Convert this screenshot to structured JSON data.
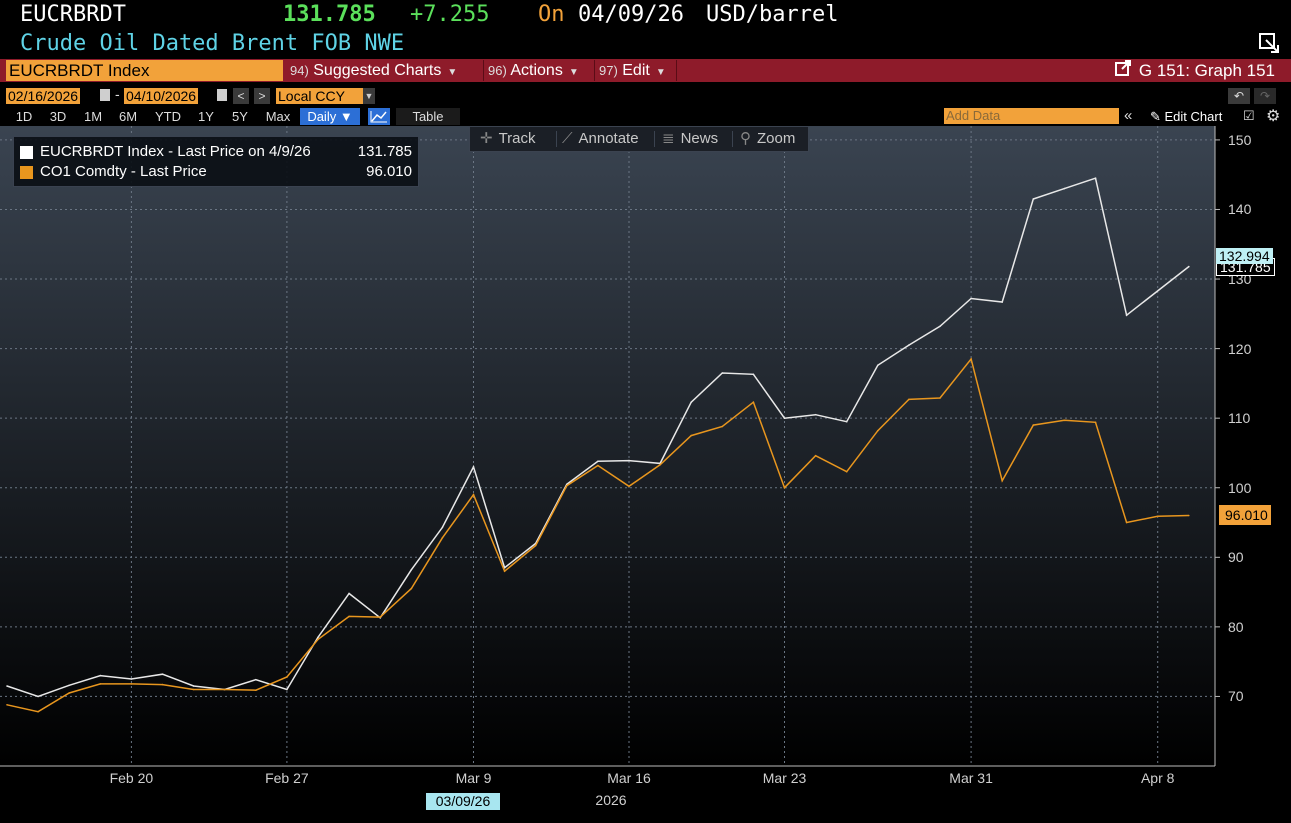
{
  "header": {
    "ticker": "EUCRBRDT",
    "last_price": "131.785",
    "change": "+7.255",
    "on_label": "On",
    "date": "04/09/26",
    "unit": "USD/barrel",
    "description": "Crude Oil Dated Brent FOB NWE",
    "colors": {
      "price": "#5be05b",
      "on": "#f2a23a",
      "desc": "#5fd3e6"
    }
  },
  "menubar": {
    "security": "EUCRBRDT Index",
    "suggested": {
      "num": "94)",
      "label": "Suggested Charts"
    },
    "actions": {
      "num": "96)",
      "label": "Actions"
    },
    "edit": {
      "num": "97)",
      "label": "Edit"
    },
    "graph_id": "G 151: Graph 151"
  },
  "controls": {
    "start_date": "02/16/2026",
    "end_date": "04/10/2026",
    "currency": "Local CCY",
    "ranges": [
      "1D",
      "3D",
      "1M",
      "6M",
      "YTD",
      "1Y",
      "5Y",
      "Max"
    ],
    "period": "Daily ▼",
    "table_label": "Table",
    "add_data_placeholder": "Add Data",
    "edit_chart_label": "Edit Chart"
  },
  "tools": {
    "track": "Track",
    "annotate": "Annotate",
    "news": "News",
    "zoom": "Zoom"
  },
  "legend": {
    "white_line": {
      "label": "EUCRBRDT Index - Last Price on 4/9/26",
      "value": "131.785"
    },
    "orange_line": {
      "label": "CO1 Comdty - Last Price",
      "value": "96.010"
    }
  },
  "price_tags": {
    "cursor": "132.994",
    "white_last": "131.785",
    "orange_last": "96.010"
  },
  "x_axis": {
    "selected_date": "03/09/26",
    "year": "2026"
  },
  "chart_data": {
    "type": "line",
    "title": "",
    "xlabel": "",
    "ylabel": "",
    "ylim": [
      60,
      152
    ],
    "yticks": [
      70,
      80,
      90,
      100,
      110,
      120,
      130,
      140,
      150
    ],
    "xticks": [
      {
        "date": "2026-02-20",
        "label": "Feb 20"
      },
      {
        "date": "2026-02-27",
        "label": "Feb 27"
      },
      {
        "date": "2026-03-09",
        "label": "Mar 9"
      },
      {
        "date": "2026-03-16",
        "label": "Mar 16"
      },
      {
        "date": "2026-03-23",
        "label": "Mar 23"
      },
      {
        "date": "2026-03-31",
        "label": "Mar 31"
      },
      {
        "date": "2026-04-08",
        "label": "Apr 8"
      }
    ],
    "grid": true,
    "series": [
      {
        "name": "EUCRBRDT Index - Last Price on 4/9/26",
        "color": "#e8e8e8",
        "points": [
          [
            "2026-02-16",
            71.5
          ],
          [
            "2026-02-17",
            70.0
          ],
          [
            "2026-02-18",
            71.6
          ],
          [
            "2026-02-19",
            73.0
          ],
          [
            "2026-02-20",
            72.5
          ],
          [
            "2026-02-23",
            73.2
          ],
          [
            "2026-02-24",
            71.5
          ],
          [
            "2026-02-25",
            71.0
          ],
          [
            "2026-02-26",
            72.4
          ],
          [
            "2026-02-27",
            71.0
          ],
          [
            "2026-03-02",
            78.5
          ],
          [
            "2026-03-03",
            84.8
          ],
          [
            "2026-03-04",
            81.3
          ],
          [
            "2026-03-05",
            88.2
          ],
          [
            "2026-03-06",
            94.3
          ],
          [
            "2026-03-09",
            103.0
          ],
          [
            "2026-03-10",
            88.5
          ],
          [
            "2026-03-11",
            92.0
          ],
          [
            "2026-03-12",
            100.5
          ],
          [
            "2026-03-13",
            103.8
          ],
          [
            "2026-03-16",
            103.9
          ],
          [
            "2026-03-17",
            103.5
          ],
          [
            "2026-03-18",
            112.3
          ],
          [
            "2026-03-19",
            116.5
          ],
          [
            "2026-03-20",
            116.3
          ],
          [
            "2026-03-23",
            110.0
          ],
          [
            "2026-03-24",
            110.5
          ],
          [
            "2026-03-25",
            109.5
          ],
          [
            "2026-03-26",
            117.6
          ],
          [
            "2026-03-27",
            120.5
          ],
          [
            "2026-03-30",
            123.2
          ],
          [
            "2026-03-31",
            127.2
          ],
          [
            "2026-04-01",
            126.7
          ],
          [
            "2026-04-02",
            141.5
          ],
          [
            "2026-04-03",
            143.0
          ],
          [
            "2026-04-06",
            144.5
          ],
          [
            "2026-04-07",
            124.8
          ],
          [
            "2026-04-09",
            131.785
          ]
        ]
      },
      {
        "name": "CO1 Comdty - Last Price",
        "color": "#e8961e",
        "points": [
          [
            "2026-02-16",
            68.8
          ],
          [
            "2026-02-17",
            67.8
          ],
          [
            "2026-02-18",
            70.5
          ],
          [
            "2026-02-19",
            71.8
          ],
          [
            "2026-02-20",
            71.8
          ],
          [
            "2026-02-23",
            71.7
          ],
          [
            "2026-02-24",
            71.0
          ],
          [
            "2026-02-25",
            71.0
          ],
          [
            "2026-02-26",
            70.9
          ],
          [
            "2026-02-27",
            72.8
          ],
          [
            "2026-03-02",
            78.2
          ],
          [
            "2026-03-03",
            81.5
          ],
          [
            "2026-03-04",
            81.4
          ],
          [
            "2026-03-05",
            85.5
          ],
          [
            "2026-03-06",
            92.8
          ],
          [
            "2026-03-09",
            99.0
          ],
          [
            "2026-03-10",
            88.0
          ],
          [
            "2026-03-11",
            91.7
          ],
          [
            "2026-03-12",
            100.3
          ],
          [
            "2026-03-13",
            103.2
          ],
          [
            "2026-03-16",
            100.2
          ],
          [
            "2026-03-17",
            103.3
          ],
          [
            "2026-03-18",
            107.5
          ],
          [
            "2026-03-19",
            108.8
          ],
          [
            "2026-03-20",
            112.3
          ],
          [
            "2026-03-23",
            100.0
          ],
          [
            "2026-03-24",
            104.6
          ],
          [
            "2026-03-25",
            102.3
          ],
          [
            "2026-03-26",
            108.2
          ],
          [
            "2026-03-27",
            112.7
          ],
          [
            "2026-03-30",
            112.9
          ],
          [
            "2026-03-31",
            118.5
          ],
          [
            "2026-04-01",
            101.0
          ],
          [
            "2026-04-02",
            109.0
          ],
          [
            "2026-04-03",
            109.7
          ],
          [
            "2026-04-06",
            109.4
          ],
          [
            "2026-04-07",
            95.0
          ],
          [
            "2026-04-08",
            95.9
          ],
          [
            "2026-04-09",
            96.01
          ]
        ]
      }
    ]
  }
}
